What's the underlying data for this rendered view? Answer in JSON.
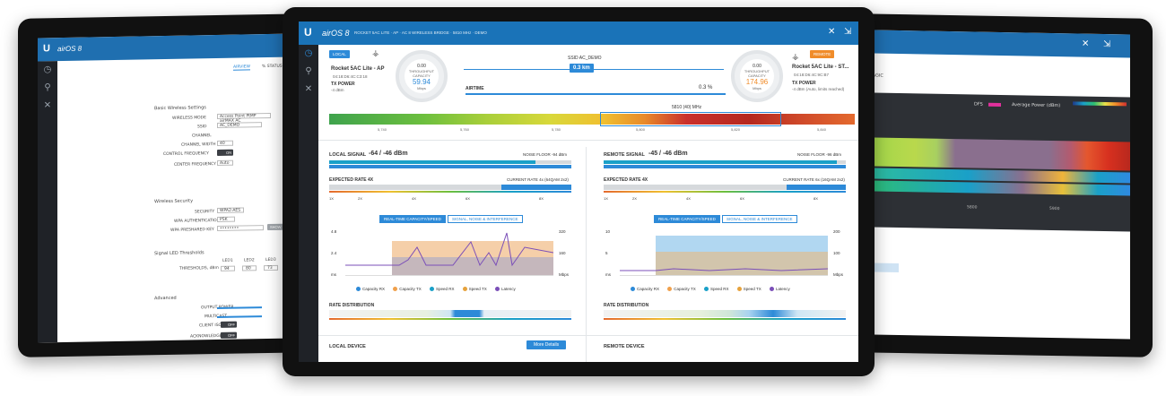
{
  "app": {
    "logo_letter": "U",
    "title": "airOS 8"
  },
  "left": {
    "tabs": [
      "AIRVIEW",
      "% STATUS"
    ],
    "section1": "Basic Wireless Settings",
    "rows1": [
      {
        "label": "WIRELESS MODE",
        "value": "Access Point PtMP airMAX AC"
      },
      {
        "label": "SSID",
        "value": "AC_DEMO"
      },
      {
        "label": "CHANNEL",
        "value": ""
      },
      {
        "label": "CHANNEL WIDTH",
        "value": "40"
      },
      {
        "label": "CONTROL FREQUENCY",
        "value": "ON"
      },
      {
        "label": "CENTER FREQUENCY",
        "value": "Auto"
      }
    ],
    "section2": "Wireless Security",
    "rows2": [
      {
        "label": "SECURITY",
        "value": "WPA2-AES"
      },
      {
        "label": "WPA AUTHENTICATION",
        "value": "PSK"
      },
      {
        "label": "WPA PRESHARED KEY",
        "value": "••••••••"
      }
    ],
    "show_btn": "SHOW",
    "section3": "Signal LED Thresholds",
    "led_label": "THRESHOLDS, dBm",
    "led_headers": [
      "LED1",
      "LED2",
      "LED3",
      "LED4"
    ],
    "led_values": [
      "94",
      "80",
      "73",
      "65"
    ],
    "section4": "Advanced",
    "adv_rows": [
      "OUTPUT POWER",
      "MULTICAST",
      "CLIENT ISOLATION",
      "ACKNOWLEDGEMENT"
    ],
    "toggle_on": "OFF"
  },
  "center": {
    "header_text": "ROCKET 5AC LITE  ·  AP  ·  AC 8 WIRELESS BRIDGE  ·  5810 MHz  ·  DEMO",
    "local_badge": "LOCAL",
    "remote_badge": "REMOTE",
    "local": {
      "name": "Rocket 5AC Lite - AP",
      "mac": "04:18:D6:4C:C3:18",
      "tx_power_label": "TX POWER",
      "tx_power": "-4 dBm",
      "throughput_label": "THROUGHPUT",
      "throughput": "0.00",
      "capacity_label": "CAPACITY",
      "capacity": "59.94",
      "unit": "Mbps"
    },
    "remote": {
      "name": "Rocket 5AC Lite - ST...",
      "mac": "04:18:D6:4C:9C:B7",
      "tx_power_label": "TX POWER",
      "tx_power": "-4 dBm (Auto, limits reached)",
      "throughput_label": "THROUGHPUT",
      "throughput": "0.00",
      "capacity_label": "CAPACITY",
      "capacity": "174.96",
      "unit": "Mbps"
    },
    "ssid": "SSID AC_DEMO",
    "distance": "0.3 km",
    "airtime_label": "AIRTIME",
    "airtime_value": "0.3 %",
    "freq_label": "5810 (40) MHz",
    "freq_ticks": [
      "5,740",
      "5,760",
      "5,780",
      "5,800",
      "5,820",
      "5,840"
    ],
    "local_signal_label": "LOCAL SIGNAL",
    "local_signal": "-64 / -46 dBm",
    "local_noise": "NOISE FLOOR -94 dBm",
    "remote_signal_label": "REMOTE SIGNAL",
    "remote_signal": "-45 / -46 dBm",
    "remote_noise": "NOISE FLOOR -96 dBm",
    "expected_rate": "EXPECTED RATE 4X",
    "current_rate_l": "CURRENT RATE 4x (64QAM 2x2)",
    "current_rate_r": "CURRENT RATE 6x (16QAM 2x2)",
    "rate_ticks": [
      "1X",
      "2X",
      "4X",
      "6X",
      "8X"
    ],
    "chart_tabs": [
      "REAL-TIME CAPACITY/SPEED",
      "SIGNAL, NOISE & INTERFERENCE"
    ],
    "left_chart_y": [
      "4.8",
      "2.4",
      "ms"
    ],
    "left_chart_y2": [
      "320",
      "160",
      "Mbps"
    ],
    "right_chart_y": [
      "10",
      "5",
      "ms"
    ],
    "right_chart_y2": [
      "200",
      "100",
      "Mbps"
    ],
    "legend": [
      {
        "label": "Capacity RX",
        "color": "#2d8ad8"
      },
      {
        "label": "Capacity TX",
        "color": "#f0a04b"
      },
      {
        "label": "Speed RX",
        "color": "#1aa0c8"
      },
      {
        "label": "Speed TX",
        "color": "#e6a23c"
      },
      {
        "label": "Latency",
        "color": "#7b4fb8"
      }
    ],
    "rate_dist": "RATE DISTRIBUTION",
    "local_device": "LOCAL DEVICE",
    "remote_device": "REMOTE DEVICE",
    "more_details": "More Details"
  },
  "right": {
    "header_text": "AIRMAGIC",
    "dfs": "DFS",
    "avg_power": "Average Power (dBm)",
    "scale": [
      "-125",
      "-95",
      "-80",
      "-70",
      "-60",
      "-50"
    ],
    "axis_ticks": [
      "5800",
      "5900"
    ]
  },
  "colors": {
    "accent": "#2d8ad8",
    "header": "#1a73b8",
    "dark": "#1f2227"
  }
}
